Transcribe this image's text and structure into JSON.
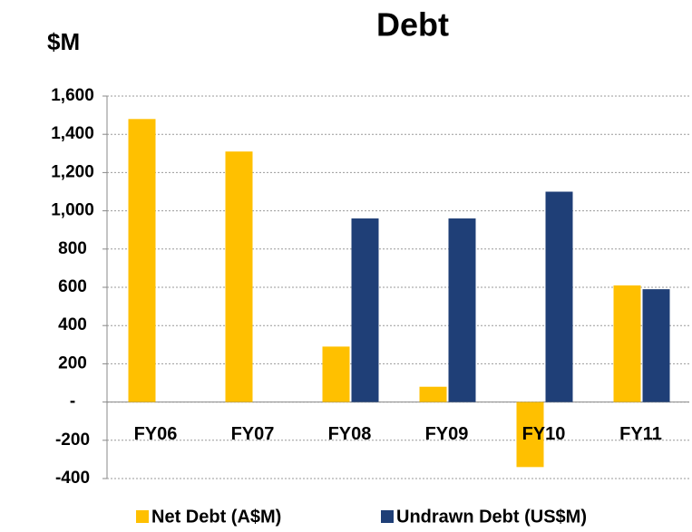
{
  "chart_data": {
    "type": "bar",
    "title": "Debt",
    "y_label": "$M",
    "categories": [
      "FY06",
      "FY07",
      "FY08",
      "FY09",
      "FY10",
      "FY11"
    ],
    "series": [
      {
        "name": "Net Debt (A$M)",
        "color": "#FFC000",
        "values": [
          1480,
          1310,
          290,
          80,
          -340,
          610
        ]
      },
      {
        "name": "Undrawn Debt (US$M)",
        "color": "#1F3F77",
        "values": [
          null,
          null,
          960,
          960,
          1100,
          590
        ]
      }
    ],
    "ylim": [
      -400,
      1600
    ],
    "yticks": [
      -400,
      -200,
      {
        "value": 0,
        "label": "-"
      },
      200,
      400,
      600,
      800,
      {
        "value": 1000,
        "label": "1,000"
      },
      {
        "value": 1200,
        "label": "1,200"
      },
      {
        "value": 1400,
        "label": "1,400"
      },
      {
        "value": 1600,
        "label": "1,600"
      }
    ],
    "grid": true,
    "legend": "bottom"
  }
}
